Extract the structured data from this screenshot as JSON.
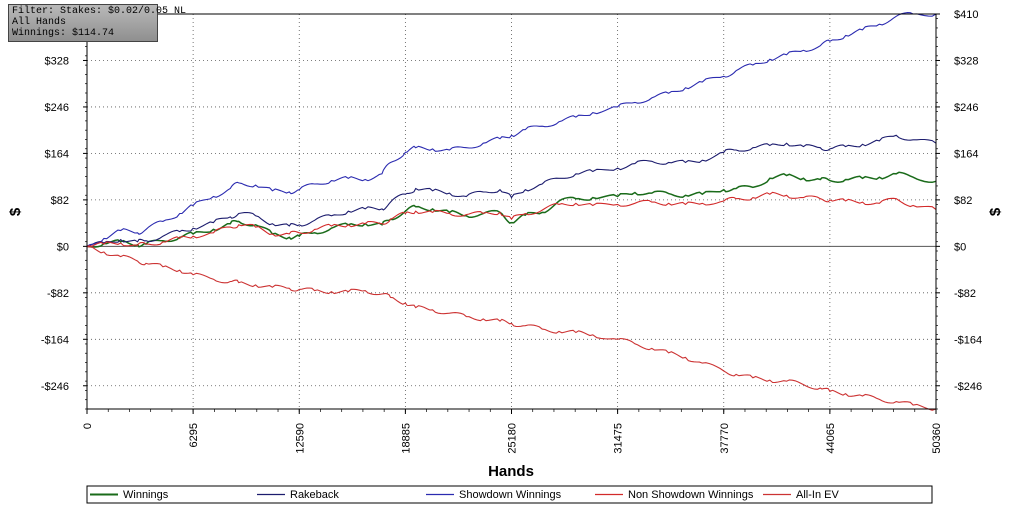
{
  "info_box": {
    "lines": [
      "Filter: Stakes: $0.02/0.05 NL",
      "All Hands",
      "Winnings: $114.74"
    ]
  },
  "chart_data": {
    "type": "line",
    "xlabel": "Hands",
    "ylabel_left": "$",
    "ylabel_right": "$",
    "xlim": [
      0,
      50360
    ],
    "ylim": [
      -287,
      410
    ],
    "x_ticks": [
      0,
      6295,
      12590,
      18885,
      25180,
      31475,
      37770,
      44065,
      50360
    ],
    "x_tick_labels": [
      "0",
      "6295",
      "12590",
      "18885",
      "25180",
      "31475",
      "37770",
      "44065",
      "50360"
    ],
    "y_ticks": [
      410,
      328,
      246,
      164,
      82,
      0,
      -82,
      -164,
      -246
    ],
    "y_tick_labels": [
      "$410",
      "$328",
      "$246",
      "$164",
      "$82",
      "$0",
      "-$82",
      "-$164",
      "-$246"
    ],
    "grid": true,
    "legend_position": "bottom",
    "series": [
      {
        "name": "Winnings",
        "color": "#1a6b1a",
        "x": [
          0,
          1000,
          2000,
          3000,
          3500,
          4500,
          5500,
          6295,
          7500,
          8500,
          9000,
          10000,
          11000,
          12000,
          12590,
          13500,
          14500,
          15500,
          16500,
          17500,
          18000,
          18885,
          19500,
          20500,
          21500,
          22500,
          23500,
          24500,
          25180,
          26000,
          27000,
          28000,
          29000,
          30000,
          31475,
          32500,
          33500,
          34500,
          35500,
          36500,
          37770,
          38500,
          39500,
          40500,
          41500,
          42500,
          43500,
          44065,
          45000,
          46000,
          47000,
          48000,
          49000,
          50360
        ],
        "y": [
          0,
          5,
          8,
          3,
          4,
          10,
          16,
          22,
          30,
          40,
          44,
          38,
          22,
          16,
          18,
          24,
          32,
          38,
          40,
          38,
          48,
          62,
          70,
          66,
          60,
          54,
          58,
          60,
          42,
          55,
          60,
          80,
          84,
          86,
          88,
          95,
          94,
          93,
          90,
          92,
          100,
          102,
          104,
          120,
          125,
          120,
          118,
          116,
          118,
          120,
          122,
          128,
          122,
          114.74
        ]
      },
      {
        "name": "Rakeback",
        "color": "#1c1c6e",
        "x": [
          0,
          1000,
          2000,
          3000,
          3500,
          4500,
          5500,
          6295,
          7500,
          8500,
          9000,
          10000,
          11000,
          12000,
          12590,
          13500,
          14500,
          15500,
          16500,
          17500,
          18000,
          18885,
          19500,
          20500,
          21500,
          22500,
          23500,
          24500,
          25180,
          26000,
          27000,
          28000,
          29000,
          30000,
          31475,
          32500,
          33500,
          34500,
          35500,
          36500,
          37770,
          38500,
          39500,
          40500,
          41500,
          42500,
          43500,
          44065,
          45000,
          46000,
          47000,
          48000,
          49000,
          50360
        ],
        "y": [
          0,
          6,
          12,
          8,
          10,
          18,
          26,
          32,
          42,
          52,
          58,
          54,
          40,
          36,
          38,
          46,
          54,
          62,
          66,
          66,
          78,
          92,
          102,
          98,
          94,
          88,
          96,
          100,
          86,
          100,
          110,
          120,
          128,
          132,
          138,
          146,
          150,
          148,
          148,
          152,
          166,
          170,
          174,
          178,
          182,
          176,
          174,
          172,
          176,
          180,
          186,
          196,
          188,
          182
        ]
      },
      {
        "name": "Showdown Winnings",
        "color": "#2b2bb0",
        "x": [
          0,
          1000,
          2000,
          3000,
          3500,
          4500,
          5500,
          6295,
          7500,
          8500,
          9000,
          10000,
          11000,
          12000,
          12590,
          13500,
          14500,
          15500,
          16500,
          17500,
          18000,
          18885,
          19500,
          20500,
          21500,
          22500,
          23500,
          24500,
          25180,
          26000,
          27000,
          28000,
          29000,
          30000,
          31475,
          32500,
          33500,
          34500,
          35500,
          36500,
          37770,
          38500,
          39500,
          40500,
          41500,
          42500,
          43500,
          44065,
          45000,
          46000,
          47000,
          48000,
          49000,
          50360
        ],
        "y": [
          0,
          14,
          28,
          24,
          30,
          44,
          58,
          72,
          88,
          102,
          112,
          108,
          98,
          96,
          100,
          110,
          116,
          120,
          118,
          128,
          148,
          166,
          174,
          172,
          170,
          174,
          182,
          190,
          196,
          206,
          212,
          220,
          228,
          236,
          246,
          254,
          262,
          270,
          280,
          290,
          300,
          310,
          320,
          330,
          338,
          346,
          354,
          362,
          372,
          382,
          392,
          406,
          410,
          410
        ]
      },
      {
        "name": "Non Showdown Winnings",
        "color": "#d22a2a",
        "x": [
          0,
          1000,
          2000,
          3000,
          3500,
          4500,
          5500,
          6295,
          7500,
          8500,
          9000,
          10000,
          11000,
          12000,
          12590,
          13500,
          14500,
          15500,
          16500,
          17500,
          18000,
          18885,
          19500,
          20500,
          21500,
          22500,
          23500,
          24500,
          25180,
          26000,
          27000,
          28000,
          29000,
          30000,
          31475,
          32500,
          33500,
          34500,
          35500,
          36500,
          37770,
          38500,
          39500,
          40500,
          41500,
          42500,
          43500,
          44065,
          45000,
          46000,
          47000,
          48000,
          49000,
          50360
        ],
        "y": [
          0,
          4,
          6,
          2,
          4,
          8,
          14,
          18,
          24,
          34,
          38,
          34,
          22,
          22,
          24,
          30,
          36,
          38,
          40,
          40,
          48,
          58,
          62,
          60,
          58,
          56,
          58,
          60,
          48,
          58,
          64,
          74,
          76,
          72,
          74,
          76,
          78,
          76,
          74,
          76,
          80,
          84,
          86,
          92,
          90,
          86,
          84,
          82,
          80,
          78,
          76,
          84,
          72,
          65
        ]
      },
      {
        "name": "All-In EV",
        "color": "#cc3333",
        "x": [
          0,
          1000,
          2000,
          3000,
          3500,
          4500,
          5500,
          6295,
          7500,
          8500,
          9000,
          10000,
          11000,
          12000,
          12590,
          13500,
          14500,
          15500,
          16500,
          17500,
          18000,
          18885,
          19500,
          20500,
          21500,
          22500,
          23500,
          24500,
          25180,
          26000,
          27000,
          28000,
          29000,
          30000,
          31475,
          32500,
          33500,
          34500,
          35500,
          36500,
          37770,
          38500,
          39500,
          40500,
          41500,
          42500,
          43500,
          44065,
          45000,
          46000,
          47000,
          48000,
          49000,
          50360
        ],
        "y": [
          0,
          -10,
          -18,
          -26,
          -30,
          -36,
          -42,
          -50,
          -58,
          -62,
          -64,
          -68,
          -72,
          -74,
          -76,
          -78,
          -80,
          -80,
          -78,
          -84,
          -90,
          -100,
          -108,
          -112,
          -118,
          -124,
          -128,
          -132,
          -136,
          -140,
          -146,
          -150,
          -152,
          -156,
          -164,
          -172,
          -180,
          -188,
          -196,
          -206,
          -220,
          -226,
          -232,
          -236,
          -238,
          -244,
          -250,
          -256,
          -260,
          -264,
          -270,
          -274,
          -280,
          -287
        ]
      }
    ]
  }
}
